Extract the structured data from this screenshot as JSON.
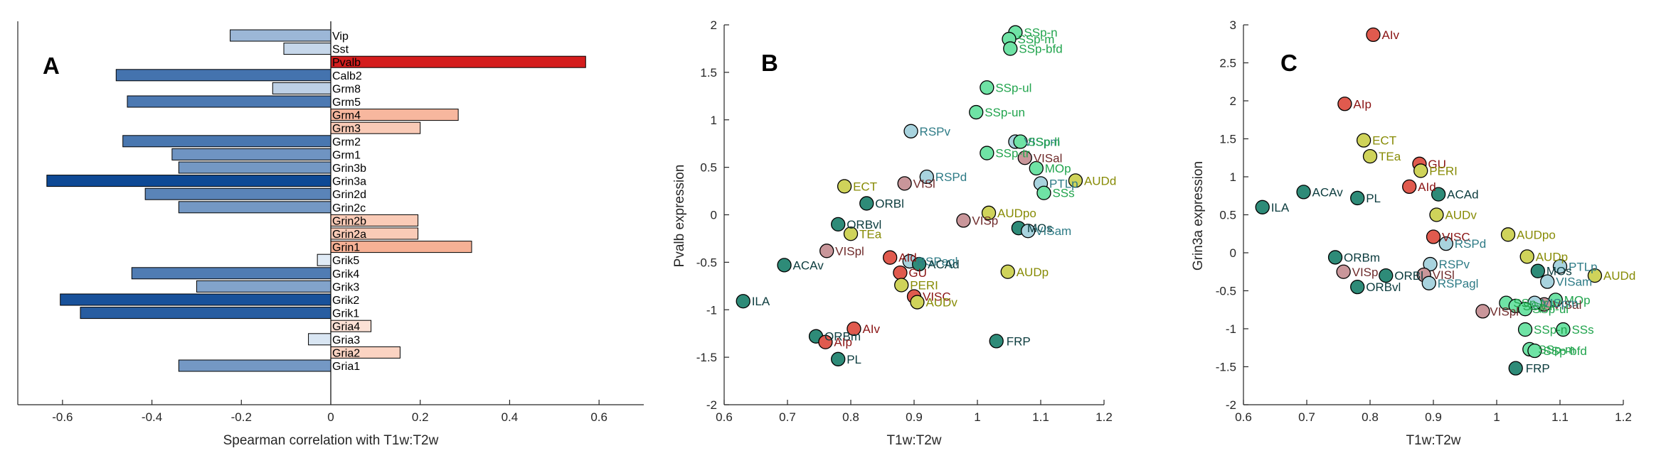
{
  "colors": {
    "isocortex_green": "#21a44d",
    "teal": "#2e7b86",
    "dark_teal": "#0b3b3d",
    "olive": "#878b05",
    "dark_red": "#8a1414",
    "maroon": "#6e2a2a",
    "axis": "#262626"
  },
  "chart_data": [
    {
      "type": "bar",
      "panel": "A",
      "orientation": "horizontal",
      "xlabel": "Spearman correlation with T1w:T2w",
      "ylabel": "",
      "xlim": [
        -0.7,
        0.7
      ],
      "xticks": [
        -0.6,
        -0.4,
        -0.2,
        0,
        0.2,
        0.4,
        0.6
      ],
      "xtick_labels": [
        "-0.6",
        "-0.4",
        "-0.2",
        "0",
        "0.2",
        "0.4",
        "0.6"
      ],
      "categories": [
        "Vip",
        "Sst",
        "Pvalb",
        "Calb2",
        "Grm8",
        "Grm5",
        "Grm4",
        "Grm3",
        "Grm2",
        "Grm1",
        "Grin3b",
        "Grin3a",
        "Grin2d",
        "Grin2c",
        "Grin2b",
        "Grin2a",
        "Grin1",
        "Grik5",
        "Grik4",
        "Grik3",
        "Grik2",
        "Grik1",
        "Gria4",
        "Gria3",
        "Gria2",
        "Gria1"
      ],
      "values": [
        -0.225,
        -0.105,
        0.57,
        -0.48,
        -0.13,
        -0.455,
        0.285,
        0.2,
        -0.465,
        -0.355,
        -0.34,
        -0.635,
        -0.415,
        -0.34,
        0.195,
        0.195,
        0.315,
        -0.03,
        -0.445,
        -0.3,
        -0.605,
        -0.56,
        0.09,
        -0.05,
        0.155,
        -0.34
      ],
      "grid": false
    },
    {
      "type": "scatter",
      "panel": "B",
      "xlabel": "T1w:T2w",
      "ylabel": "Pvalb expression",
      "xlim": [
        0.6,
        1.2
      ],
      "ylim": [
        -2,
        2
      ],
      "xticks": [
        0.6,
        0.7,
        0.8,
        0.9,
        1.0,
        1.1,
        1.2
      ],
      "xtick_labels": [
        "0.6",
        "0.7",
        "0.8",
        "0.9",
        "1",
        "1.1",
        "1.2"
      ],
      "yticks": [
        -2,
        -1.5,
        -1,
        -0.5,
        0,
        0.5,
        1,
        1.5,
        2
      ],
      "ytick_labels": [
        "-2",
        "-1.5",
        "-1",
        "-0.5",
        "0",
        "0.5",
        "1",
        "1.5",
        "2"
      ],
      "grid": false,
      "points": [
        {
          "label": "SSp-n",
          "x": 1.06,
          "y": 1.92,
          "fill": "#6fe3a5",
          "text": "#21a44d",
          "dx": 12,
          "dy": 0
        },
        {
          "label": "SSp-m",
          "x": 1.05,
          "y": 1.85,
          "fill": "#6fe3a5",
          "text": "#21a44d",
          "dx": 12,
          "dy": 0
        },
        {
          "label": "SSp-bfd",
          "x": 1.052,
          "y": 1.75,
          "fill": "#6fe3a5",
          "text": "#21a44d",
          "dx": 12,
          "dy": 0
        },
        {
          "label": "SSp-ul",
          "x": 1.015,
          "y": 1.34,
          "fill": "#6fe3a5",
          "text": "#21a44d",
          "dx": 12,
          "dy": 0
        },
        {
          "label": "SSp-un",
          "x": 0.998,
          "y": 1.08,
          "fill": "#6fe3a5",
          "text": "#21a44d",
          "dx": 12,
          "dy": 0
        },
        {
          "label": "RSPv",
          "x": 0.895,
          "y": 0.88,
          "fill": "#a8d3de",
          "text": "#2e7b86",
          "dx": 12,
          "dy": 0
        },
        {
          "label": "VISpm",
          "x": 1.06,
          "y": 0.77,
          "fill": "#a8d3de",
          "text": "#2e7b86",
          "dx": 12,
          "dy": 0
        },
        {
          "label": "SSp-ll",
          "x": 1.068,
          "y": 0.77,
          "fill": "#6fe3a5",
          "text": "#21a44d",
          "dx": 10,
          "dy": 0
        },
        {
          "label": "SSp-tr",
          "x": 1.015,
          "y": 0.65,
          "fill": "#6fe3a5",
          "text": "#21a44d",
          "dx": 12,
          "dy": 0
        },
        {
          "label": "VISal",
          "x": 1.075,
          "y": 0.6,
          "fill": "#c9969a",
          "text": "#6e2a2a",
          "dx": 12,
          "dy": 0
        },
        {
          "label": "MOp",
          "x": 1.093,
          "y": 0.49,
          "fill": "#6fe3a5",
          "text": "#21a44d",
          "dx": 12,
          "dy": 0
        },
        {
          "label": "RSPd",
          "x": 0.92,
          "y": 0.4,
          "fill": "#a8d3de",
          "text": "#2e7b86",
          "dx": 12,
          "dy": 0
        },
        {
          "label": "PTLp",
          "x": 1.1,
          "y": 0.33,
          "fill": "#a8d3de",
          "text": "#2e7b86",
          "dx": 12,
          "dy": 0
        },
        {
          "label": "AUDd",
          "x": 1.155,
          "y": 0.36,
          "fill": "#cfd35a",
          "text": "#878b05",
          "dx": 12,
          "dy": 0
        },
        {
          "label": "VISl",
          "x": 0.885,
          "y": 0.33,
          "fill": "#c9969a",
          "text": "#6e2a2a",
          "dx": 12,
          "dy": 0
        },
        {
          "label": "ECT",
          "x": 0.79,
          "y": 0.3,
          "fill": "#cfd35a",
          "text": "#878b05",
          "dx": 12,
          "dy": 0
        },
        {
          "label": "SSs",
          "x": 1.105,
          "y": 0.23,
          "fill": "#6fe3a5",
          "text": "#21a44d",
          "dx": 12,
          "dy": 0
        },
        {
          "label": "ORBl",
          "x": 0.825,
          "y": 0.12,
          "fill": "#2e8b78",
          "text": "#0b3b3d",
          "dx": 12,
          "dy": 0
        },
        {
          "label": "AUDpo",
          "x": 1.018,
          "y": 0.02,
          "fill": "#cfd35a",
          "text": "#878b05",
          "dx": 12,
          "dy": 0
        },
        {
          "label": "VISp",
          "x": 0.978,
          "y": -0.06,
          "fill": "#c9969a",
          "text": "#6e2a2a",
          "dx": 12,
          "dy": 0
        },
        {
          "label": "ORBvl",
          "x": 0.78,
          "y": -0.1,
          "fill": "#2e8b78",
          "text": "#0b3b3d",
          "dx": 12,
          "dy": 0
        },
        {
          "label": "MOs",
          "x": 1.065,
          "y": -0.14,
          "fill": "#2e8b78",
          "text": "#0b3b3d",
          "dx": 12,
          "dy": 0
        },
        {
          "label": "VISam",
          "x": 1.08,
          "y": -0.17,
          "fill": "#a8d3de",
          "text": "#2e7b86",
          "dx": 10,
          "dy": 0
        },
        {
          "label": "TEa",
          "x": 0.8,
          "y": -0.2,
          "fill": "#cfd35a",
          "text": "#878b05",
          "dx": 12,
          "dy": 0
        },
        {
          "label": "VISpl",
          "x": 0.762,
          "y": -0.38,
          "fill": "#c9969a",
          "text": "#6e2a2a",
          "dx": 12,
          "dy": 0
        },
        {
          "label": "AId",
          "x": 0.862,
          "y": -0.45,
          "fill": "#e05a4e",
          "text": "#8a1414",
          "dx": 12,
          "dy": 0
        },
        {
          "label": "RSPagl",
          "x": 0.893,
          "y": -0.49,
          "fill": "#a8d3de",
          "text": "#2e7b86",
          "dx": 10,
          "dy": 0
        },
        {
          "label": "ACAd",
          "x": 0.908,
          "y": -0.52,
          "fill": "#2e8b78",
          "text": "#0b3b3d",
          "dx": 12,
          "dy": 0
        },
        {
          "label": "ACAv",
          "x": 0.695,
          "y": -0.53,
          "fill": "#2e8b78",
          "text": "#0b3b3d",
          "dx": 12,
          "dy": 0
        },
        {
          "label": "GU",
          "x": 0.878,
          "y": -0.61,
          "fill": "#e05a4e",
          "text": "#8a1414",
          "dx": 12,
          "dy": 0
        },
        {
          "label": "AUDp",
          "x": 1.048,
          "y": -0.6,
          "fill": "#cfd35a",
          "text": "#878b05",
          "dx": 12,
          "dy": 0
        },
        {
          "label": "PERI",
          "x": 0.88,
          "y": -0.74,
          "fill": "#cfd35a",
          "text": "#878b05",
          "dx": 12,
          "dy": 0
        },
        {
          "label": "VISC",
          "x": 0.9,
          "y": -0.86,
          "fill": "#e05a4e",
          "text": "#8a1414",
          "dx": 12,
          "dy": 0
        },
        {
          "label": "AUDv",
          "x": 0.905,
          "y": -0.92,
          "fill": "#cfd35a",
          "text": "#878b05",
          "dx": 12,
          "dy": 0
        },
        {
          "label": "ILA",
          "x": 0.63,
          "y": -0.91,
          "fill": "#2e8b78",
          "text": "#0b3b3d",
          "dx": 12,
          "dy": 0
        },
        {
          "label": "AIv",
          "x": 0.805,
          "y": -1.2,
          "fill": "#e05a4e",
          "text": "#8a1414",
          "dx": 12,
          "dy": 0
        },
        {
          "label": "ORBm",
          "x": 0.745,
          "y": -1.28,
          "fill": "#2e8b78",
          "text": "#0b3b3d",
          "dx": 12,
          "dy": 0
        },
        {
          "label": "AIp",
          "x": 0.76,
          "y": -1.34,
          "fill": "#e05a4e",
          "text": "#8a1414",
          "dx": 12,
          "dy": 0
        },
        {
          "label": "FRP",
          "x": 1.03,
          "y": -1.33,
          "fill": "#2e8b78",
          "text": "#0b3b3d",
          "dx": 14,
          "dy": 0
        },
        {
          "label": "PL",
          "x": 0.78,
          "y": -1.52,
          "fill": "#2e8b78",
          "text": "#0b3b3d",
          "dx": 12,
          "dy": 0
        }
      ]
    },
    {
      "type": "scatter",
      "panel": "C",
      "xlabel": "T1w:T2w",
      "ylabel": "Grin3a expression",
      "xlim": [
        0.6,
        1.2
      ],
      "ylim": [
        -2,
        3
      ],
      "xticks": [
        0.6,
        0.7,
        0.8,
        0.9,
        1.0,
        1.1,
        1.2
      ],
      "xtick_labels": [
        "0.6",
        "0.7",
        "0.8",
        "0.9",
        "1",
        "1.1",
        "1.2"
      ],
      "yticks": [
        -2,
        -1.5,
        -1,
        -0.5,
        0,
        0.5,
        1,
        1.5,
        2,
        2.5,
        3
      ],
      "ytick_labels": [
        "-2",
        "-1.5",
        "-1",
        "-0.5",
        "0",
        "0.5",
        "1",
        "1.5",
        "2",
        "2.5",
        "3"
      ],
      "grid": false,
      "points": [
        {
          "label": "AIv",
          "x": 0.805,
          "y": 2.87,
          "fill": "#e05a4e",
          "text": "#8a1414",
          "dx": 12,
          "dy": 0
        },
        {
          "label": "AIp",
          "x": 0.76,
          "y": 1.96,
          "fill": "#e05a4e",
          "text": "#8a1414",
          "dx": 12,
          "dy": 0
        },
        {
          "label": "ECT",
          "x": 0.79,
          "y": 1.48,
          "fill": "#cfd35a",
          "text": "#878b05",
          "dx": 12,
          "dy": 0
        },
        {
          "label": "TEa",
          "x": 0.8,
          "y": 1.27,
          "fill": "#cfd35a",
          "text": "#878b05",
          "dx": 12,
          "dy": 0
        },
        {
          "label": "GU",
          "x": 0.878,
          "y": 1.17,
          "fill": "#e05a4e",
          "text": "#8a1414",
          "dx": 12,
          "dy": 0
        },
        {
          "label": "PERI",
          "x": 0.88,
          "y": 1.08,
          "fill": "#cfd35a",
          "text": "#878b05",
          "dx": 12,
          "dy": 0
        },
        {
          "label": "AId",
          "x": 0.862,
          "y": 0.87,
          "fill": "#e05a4e",
          "text": "#8a1414",
          "dx": 12,
          "dy": 0
        },
        {
          "label": "ACAv",
          "x": 0.695,
          "y": 0.8,
          "fill": "#2e8b78",
          "text": "#0b3b3d",
          "dx": 12,
          "dy": 0
        },
        {
          "label": "PL",
          "x": 0.78,
          "y": 0.72,
          "fill": "#2e8b78",
          "text": "#0b3b3d",
          "dx": 12,
          "dy": 0
        },
        {
          "label": "ACAd",
          "x": 0.908,
          "y": 0.77,
          "fill": "#2e8b78",
          "text": "#0b3b3d",
          "dx": 12,
          "dy": 0
        },
        {
          "label": "ILA",
          "x": 0.63,
          "y": 0.6,
          "fill": "#2e8b78",
          "text": "#0b3b3d",
          "dx": 12,
          "dy": 0
        },
        {
          "label": "AUDv",
          "x": 0.905,
          "y": 0.5,
          "fill": "#cfd35a",
          "text": "#878b05",
          "dx": 12,
          "dy": 0
        },
        {
          "label": "AUDpo",
          "x": 1.018,
          "y": 0.24,
          "fill": "#cfd35a",
          "text": "#878b05",
          "dx": 12,
          "dy": 0
        },
        {
          "label": "VISC",
          "x": 0.9,
          "y": 0.21,
          "fill": "#e05a4e",
          "text": "#8a1414",
          "dx": 12,
          "dy": 0
        },
        {
          "label": "RSPd",
          "x": 0.92,
          "y": 0.12,
          "fill": "#a8d3de",
          "text": "#2e7b86",
          "dx": 12,
          "dy": 0
        },
        {
          "label": "AUDp",
          "x": 1.048,
          "y": -0.05,
          "fill": "#cfd35a",
          "text": "#878b05",
          "dx": 12,
          "dy": 0
        },
        {
          "label": "ORBm",
          "x": 0.745,
          "y": -0.06,
          "fill": "#2e8b78",
          "text": "#0b3b3d",
          "dx": 12,
          "dy": 0
        },
        {
          "label": "RSPv",
          "x": 0.895,
          "y": -0.15,
          "fill": "#a8d3de",
          "text": "#2e7b86",
          "dx": 12,
          "dy": 0
        },
        {
          "label": "PTLp",
          "x": 1.1,
          "y": -0.18,
          "fill": "#a8d3de",
          "text": "#2e7b86",
          "dx": 12,
          "dy": 0
        },
        {
          "label": "MOs",
          "x": 1.065,
          "y": -0.24,
          "fill": "#2e8b78",
          "text": "#0b3b3d",
          "dx": 12,
          "dy": 0
        },
        {
          "label": "VISp",
          "x": 0.758,
          "y": -0.25,
          "fill": "#c9969a",
          "text": "#6e2a2a",
          "dx": 12,
          "dy": 0
        },
        {
          "label": "ORBl",
          "x": 0.825,
          "y": -0.3,
          "fill": "#2e8b78",
          "text": "#0b3b3d",
          "dx": 12,
          "dy": 0
        },
        {
          "label": "VISl",
          "x": 0.885,
          "y": -0.29,
          "fill": "#c9969a",
          "text": "#6e2a2a",
          "dx": 12,
          "dy": 0
        },
        {
          "label": "AUDd",
          "x": 1.155,
          "y": -0.3,
          "fill": "#cfd35a",
          "text": "#878b05",
          "dx": 12,
          "dy": 0
        },
        {
          "label": "VISam",
          "x": 1.08,
          "y": -0.38,
          "fill": "#a8d3de",
          "text": "#2e7b86",
          "dx": 12,
          "dy": 0
        },
        {
          "label": "RSPagl",
          "x": 0.893,
          "y": -0.4,
          "fill": "#a8d3de",
          "text": "#2e7b86",
          "dx": 12,
          "dy": 0
        },
        {
          "label": "ORBvl",
          "x": 0.78,
          "y": -0.45,
          "fill": "#2e8b78",
          "text": "#0b3b3d",
          "dx": 12,
          "dy": 0
        },
        {
          "label": "MOp",
          "x": 1.093,
          "y": -0.62,
          "fill": "#6fe3a5",
          "text": "#21a44d",
          "dx": 12,
          "dy": 0
        },
        {
          "label": "SSp-tr",
          "x": 1.015,
          "y": -0.66,
          "fill": "#6fe3a5",
          "text": "#21a44d",
          "dx": 10,
          "dy": 0
        },
        {
          "label": "SSp-ll",
          "x": 1.03,
          "y": -0.7,
          "fill": "#6fe3a5",
          "text": "#21a44d",
          "dx": 10,
          "dy": 0
        },
        {
          "label": "VISal",
          "x": 1.075,
          "y": -0.68,
          "fill": "#c9969a",
          "text": "#6e2a2a",
          "dx": 12,
          "dy": 0
        },
        {
          "label": "VISpm",
          "x": 1.06,
          "y": -0.66,
          "fill": "#a8d3de",
          "text": "#2e7b86",
          "dx": 10,
          "dy": 0
        },
        {
          "label": "SSp-ul",
          "x": 1.045,
          "y": -0.74,
          "fill": "#6fe3a5",
          "text": "#21a44d",
          "dx": 10,
          "dy": 0
        },
        {
          "label": "VISpl",
          "x": 0.978,
          "y": -0.77,
          "fill": "#c9969a",
          "text": "#6e2a2a",
          "dx": 10,
          "dy": 0
        },
        {
          "label": "SSp-n",
          "x": 1.045,
          "y": -1.01,
          "fill": "#6fe3a5",
          "text": "#21a44d",
          "dx": 12,
          "dy": 0
        },
        {
          "label": "SSs",
          "x": 1.105,
          "y": -1.01,
          "fill": "#6fe3a5",
          "text": "#21a44d",
          "dx": 12,
          "dy": 0
        },
        {
          "label": "SSp-m",
          "x": 1.052,
          "y": -1.27,
          "fill": "#6fe3a5",
          "text": "#21a44d",
          "dx": 12,
          "dy": 0
        },
        {
          "label": "SSp-bfd",
          "x": 1.06,
          "y": -1.29,
          "fill": "#6fe3a5",
          "text": "#21a44d",
          "dx": 12,
          "dy": 0
        },
        {
          "label": "FRP",
          "x": 1.03,
          "y": -1.52,
          "fill": "#2e8b78",
          "text": "#0b3b3d",
          "dx": 14,
          "dy": 0
        }
      ]
    }
  ]
}
